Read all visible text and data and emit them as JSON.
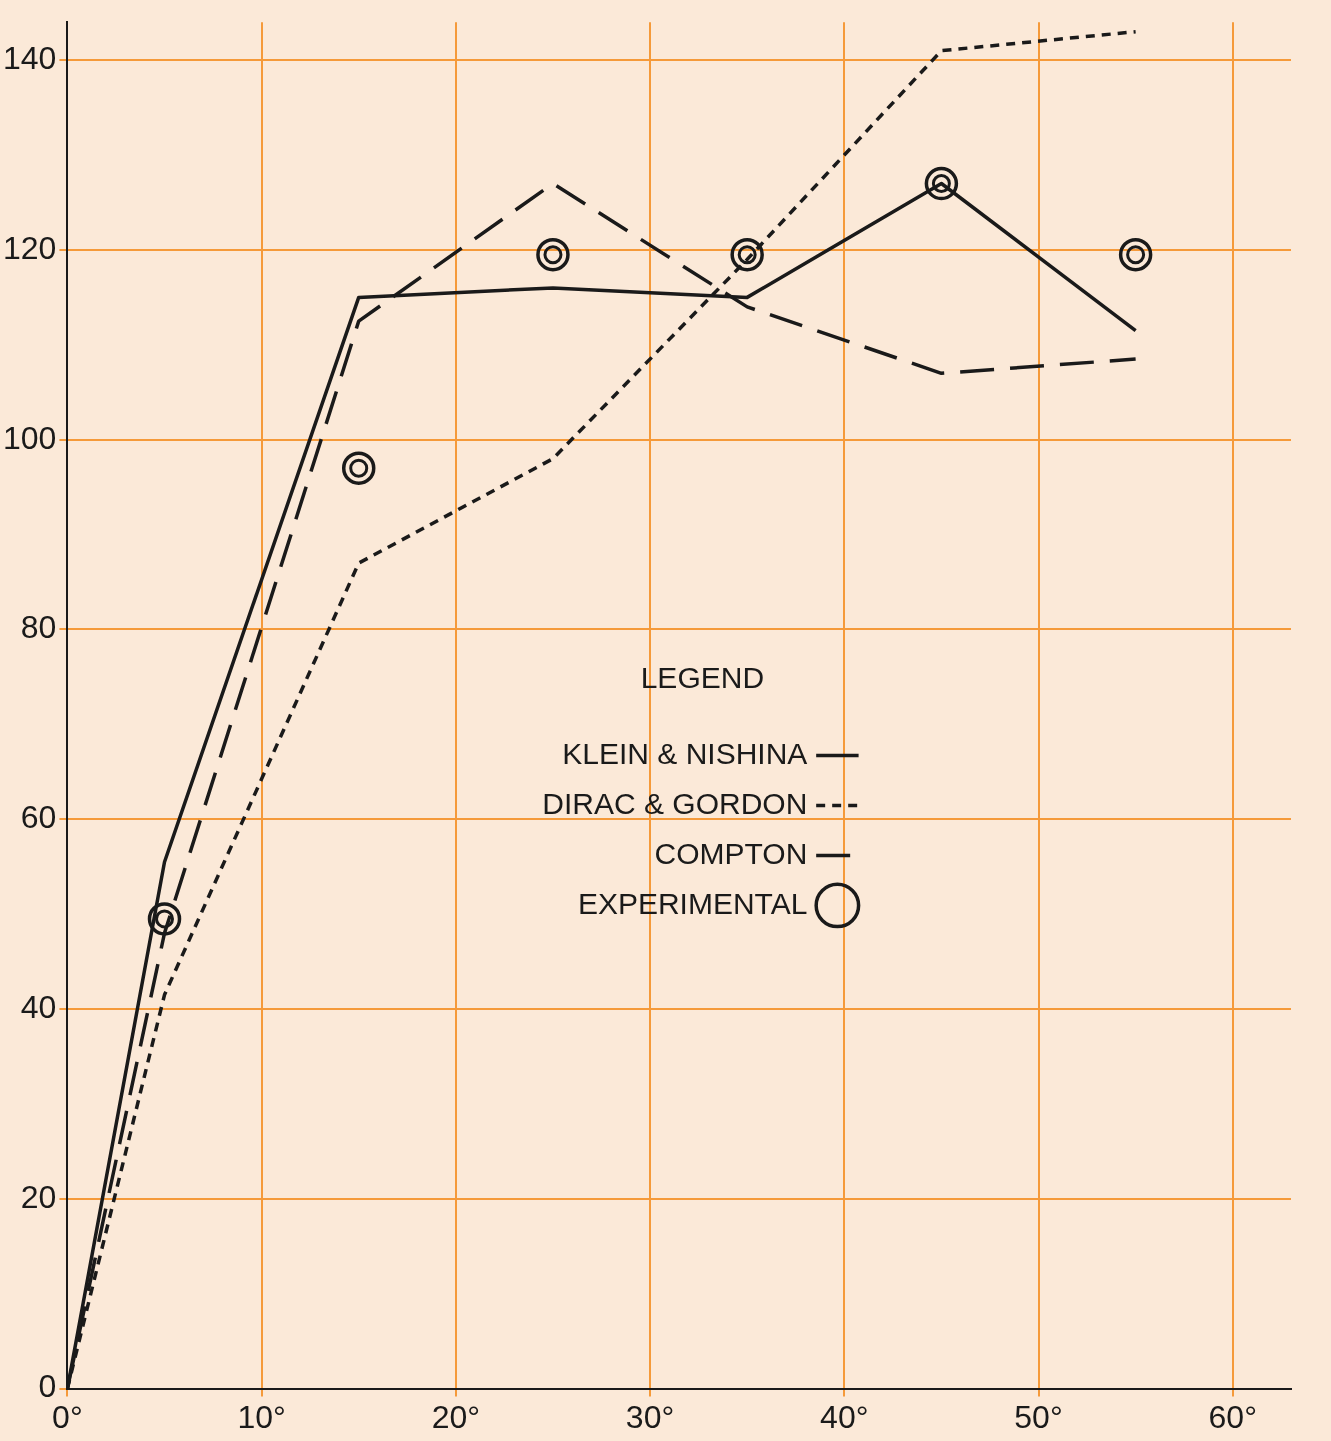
{
  "chart_data": {
    "type": "line",
    "legend_title": "LEGEND",
    "legend": "center",
    "x": [
      0,
      5,
      15,
      25,
      35,
      45,
      55
    ],
    "series": [
      {
        "name": "KLEIN & NISHINA",
        "color": "#1a1a1a",
        "line_style": "solid",
        "marker": "none",
        "values": [
          0,
          55.5,
          115,
          116,
          115,
          127,
          111.5
        ]
      },
      {
        "name": "DIRAC & GORDON",
        "color": "#1a1a1a",
        "line_style": "dotted",
        "marker": "none",
        "values": [
          0,
          41.5,
          87,
          98,
          119,
          141,
          143
        ]
      },
      {
        "name": "COMPTON",
        "color": "#1a1a1a",
        "line_style": "dashed",
        "marker": "none",
        "values": [
          0,
          48,
          112.5,
          127,
          114,
          107,
          108.5
        ]
      },
      {
        "name": "EXPERIMENTAL",
        "type": "scatter",
        "color": "#1a1a1a",
        "marker": "circle",
        "x": [
          5,
          15,
          25,
          35,
          45,
          55
        ],
        "values": [
          49.5,
          97,
          119.5,
          119.5,
          127,
          119.5
        ]
      }
    ],
    "xlim": [
      0,
      63
    ],
    "ylim": [
      0,
      144
    ],
    "xticks": [
      {
        "value": 0,
        "label": "0°"
      },
      {
        "value": 10,
        "label": "10°"
      },
      {
        "value": 20,
        "label": "20°"
      },
      {
        "value": 30,
        "label": "30°"
      },
      {
        "value": 40,
        "label": "40°"
      },
      {
        "value": 50,
        "label": "50°"
      },
      {
        "value": 60,
        "label": "60°"
      }
    ],
    "yticks": [
      0,
      20,
      40,
      60,
      80,
      100,
      120,
      140
    ],
    "grid": true
  }
}
